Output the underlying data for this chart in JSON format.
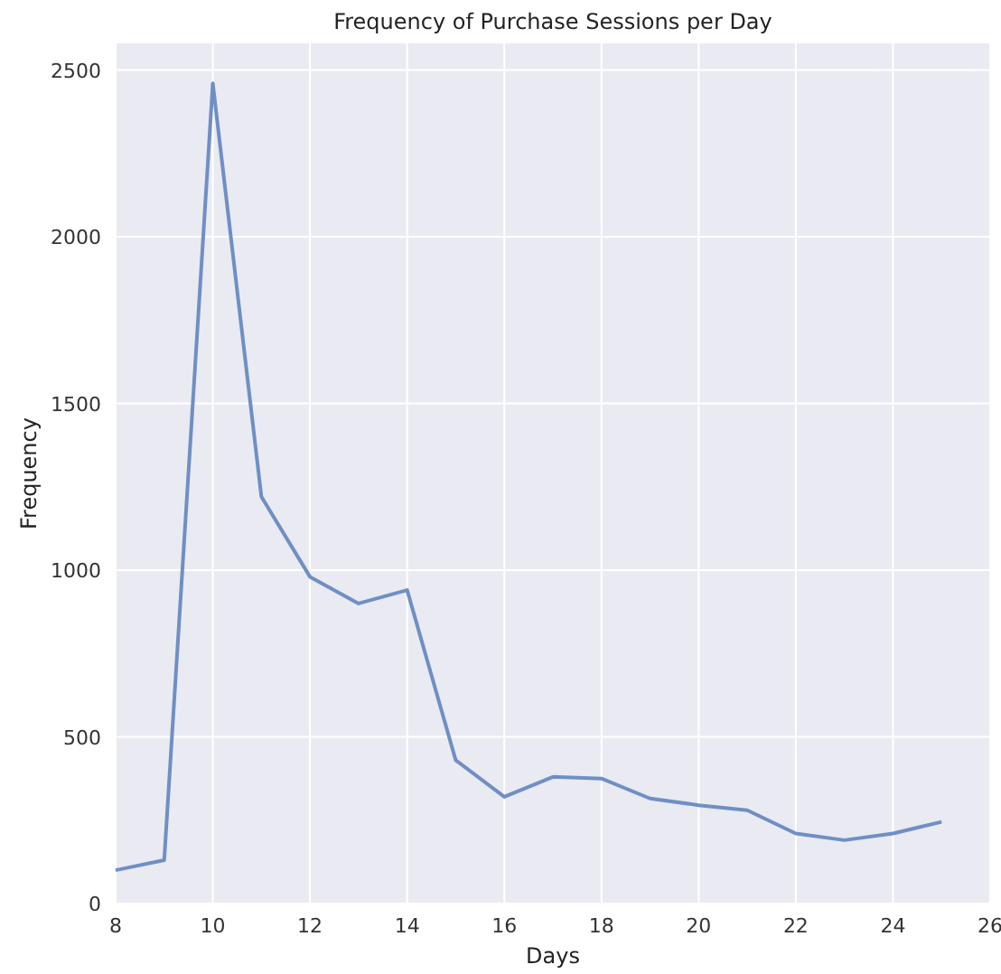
{
  "chart_data": {
    "type": "line",
    "title": "Frequency of Purchase Sessions per Day",
    "xlabel": "Days",
    "ylabel": "Frequency",
    "x": [
      8,
      9,
      10,
      11,
      12,
      13,
      14,
      15,
      16,
      17,
      18,
      19,
      20,
      21,
      22,
      23,
      24,
      25
    ],
    "series": [
      {
        "color": "#6f8fc4",
        "values": [
          100,
          130,
          2460,
          1220,
          980,
          900,
          940,
          430,
          320,
          380,
          375,
          315,
          295,
          280,
          210,
          190,
          210,
          245
        ]
      }
    ],
    "xlim": [
      8,
      26
    ],
    "xticks": [
      8,
      10,
      12,
      14,
      16,
      18,
      20,
      22,
      24,
      26
    ],
    "ylim": [
      0,
      2580
    ],
    "yticks": [
      0,
      500,
      1000,
      1500,
      2000,
      2500
    ],
    "grid": true,
    "marker": "none",
    "line_style": "solid"
  }
}
